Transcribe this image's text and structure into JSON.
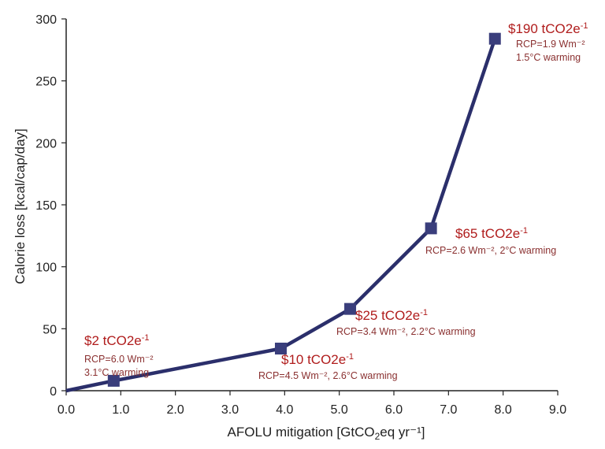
{
  "chart_data": {
    "type": "line",
    "title": "",
    "xlabel_main": "AFOLU mitigation [GtCO",
    "xlabel_sub": "2",
    "xlabel_rest": "eq yr⁻¹]",
    "ylabel": "Calorie loss [kcal/cap/day]",
    "xlim": [
      0,
      9
    ],
    "ylim": [
      0,
      300
    ],
    "x_ticks": [
      "0.0",
      "1.0",
      "2.0",
      "3.0",
      "4.0",
      "5.0",
      "6.0",
      "7.0",
      "8.0",
      "9.0"
    ],
    "y_ticks": [
      "0",
      "50",
      "100",
      "150",
      "200",
      "250",
      "300"
    ],
    "grid": false,
    "series": [
      {
        "x": [
          0.0,
          0.87,
          3.93,
          5.2,
          6.68,
          7.85
        ],
        "y": [
          0,
          8,
          34,
          66,
          131,
          284
        ],
        "marker": "square",
        "line_color": "#2b2f6b",
        "marker_color": "#3a3e7c"
      }
    ],
    "annotations": [
      {
        "price": "$2 tCO2e",
        "sup": "-1",
        "detail_lines": [
          "RCP=6.0 Wm⁻²",
          "3.1°C warming"
        ]
      },
      {
        "price": "$10 tCO2e",
        "sup": "-1",
        "detail_lines": [
          "RCP=4.5 Wm⁻², 2.6°C warming"
        ]
      },
      {
        "price": "$25 tCO2e",
        "sup": "-1",
        "detail_lines": [
          "RCP=3.4 Wm⁻², 2.2°C warming"
        ]
      },
      {
        "price": "$65 tCO2e",
        "sup": "-1",
        "detail_lines": [
          "RCP=2.6 Wm⁻², 2°C warming"
        ]
      },
      {
        "price": "$190 tCO2e",
        "sup": "-1",
        "detail_lines": [
          "RCP=1.9 Wm⁻²",
          "1.5°C warming"
        ]
      }
    ],
    "colors": {
      "price_text": "#b01c1c",
      "detail_text": "#8a3030",
      "axis": "#222222"
    }
  }
}
